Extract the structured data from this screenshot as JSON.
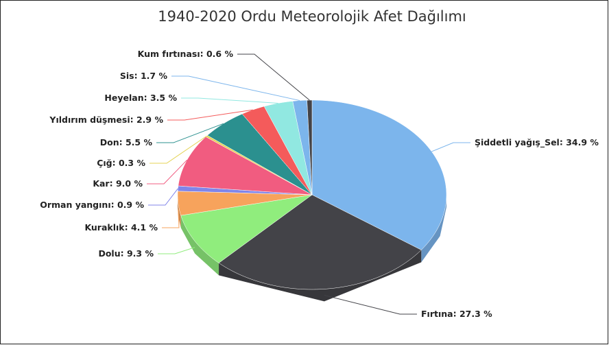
{
  "chart_data": {
    "type": "pie",
    "title": "1940-2020 Ordu Meteorolojik Afet Dağılımı",
    "categories": [
      "Şiddetli yağış_Sel",
      "Fırtına",
      "Dolu",
      "Kuraklık",
      "Orman yangını",
      "Kar",
      "Çığ",
      "Don",
      "Yıldırım düşmesi",
      "Heyelan",
      "Sis",
      "Kum fırtınası"
    ],
    "values": [
      34.9,
      27.3,
      9.3,
      4.1,
      0.9,
      9.0,
      0.3,
      5.5,
      2.9,
      3.5,
      1.7,
      0.6
    ],
    "value_labels": [
      "34.9 %",
      "27.3 %",
      "9.3 %",
      "4.1 %",
      "0.9 %",
      "9.0 %",
      "0.3 %",
      "5.5 %",
      "2.9 %",
      "3.5 %",
      "1.7 %",
      "0.6 %"
    ],
    "colors": [
      "#7cb5ec",
      "#434348",
      "#90ed7d",
      "#f7a35c",
      "#8085e9",
      "#f15c80",
      "#e4d354",
      "#2b908f",
      "#f45b5b",
      "#91e8e1",
      "#7cb5ec",
      "#434348"
    ]
  }
}
